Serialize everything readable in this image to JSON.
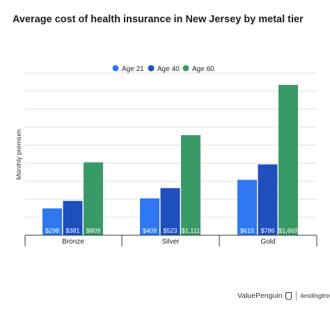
{
  "chart_data": {
    "type": "bar",
    "title": "Average cost of health insurance in New Jersey by metal tier",
    "ylabel": "Monthly premium",
    "xlabel": "",
    "categories": [
      "Bronze",
      "Silver",
      "Gold"
    ],
    "series": [
      {
        "name": "Age 21",
        "color": "#2f78f0",
        "values": [
          298,
          409,
          615
        ],
        "labels": [
          "$298",
          "$409",
          "$615"
        ]
      },
      {
        "name": "Age 40",
        "color": "#1f4fbd",
        "values": [
          381,
          523,
          786
        ],
        "labels": [
          "$381",
          "$523",
          "$786"
        ]
      },
      {
        "name": "Age 60",
        "color": "#3a9a67",
        "values": [
          809,
          1111,
          1669
        ],
        "labels": [
          "$809",
          "$1,111",
          "$1,669"
        ]
      }
    ],
    "ylim": [
      0,
      1800
    ],
    "grid": true,
    "legend_position": "top-center"
  },
  "footer": {
    "brand_left": "ValuePenguin",
    "brand_right": "lendingtree"
  }
}
